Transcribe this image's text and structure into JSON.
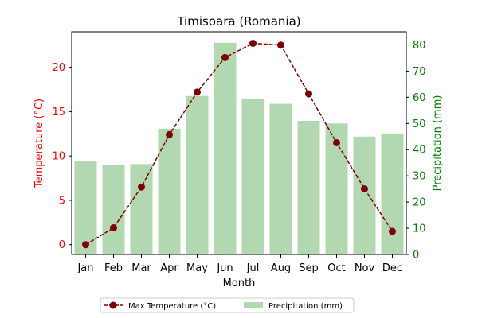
{
  "colors": {
    "temperature": "#800000",
    "precipitation_bar": "#b2d8b2",
    "left_axis": "#ff0000",
    "right_axis": "#008000"
  },
  "chart_data": {
    "type": "bar",
    "title": "Timisoara (Romania)",
    "xlabel": "Month",
    "categories": [
      "Jan",
      "Feb",
      "Mar",
      "Apr",
      "May",
      "Jun",
      "Jul",
      "Aug",
      "Sep",
      "Oct",
      "Nov",
      "Dec"
    ],
    "y_left": {
      "label": "Temperature (°C)",
      "ylim": [
        -1.1,
        24.0
      ],
      "ticks": [
        0,
        5,
        10,
        15,
        20
      ]
    },
    "y_right": {
      "label": "Precipitation (mm)",
      "ylim": [
        0,
        85
      ],
      "ticks": [
        0,
        10,
        20,
        30,
        40,
        50,
        60,
        70,
        80
      ]
    },
    "series": [
      {
        "name": "Max Temperature (°C)",
        "type": "line",
        "axis": "left",
        "values": [
          0.0,
          1.9,
          6.5,
          12.4,
          17.2,
          21.1,
          22.7,
          22.5,
          17.0,
          11.5,
          6.3,
          1.5
        ]
      },
      {
        "name": "Precipitation (mm)",
        "type": "bar",
        "axis": "right",
        "values": [
          35.5,
          34.0,
          34.5,
          48.0,
          60.5,
          80.8,
          59.5,
          57.5,
          51.0,
          50.0,
          45.0,
          46.2
        ]
      }
    ],
    "legend_position": "bottom-center",
    "grid": false
  }
}
